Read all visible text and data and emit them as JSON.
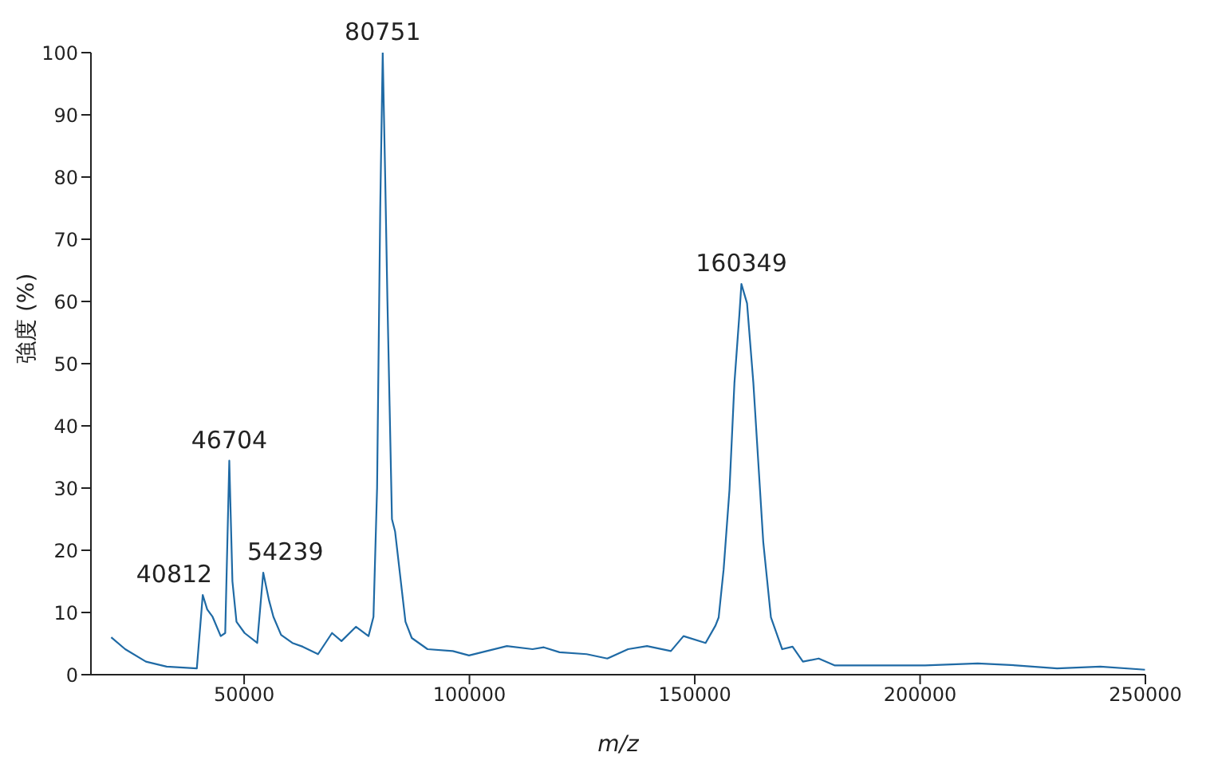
{
  "chart_data": {
    "type": "line",
    "xlabel": "m/z",
    "ylabel": "強度 (%)",
    "x": [
      20500,
      23600,
      28200,
      32800,
      39500,
      40812,
      41800,
      43000,
      44800,
      45800,
      46704,
      47400,
      48300,
      50100,
      52900,
      54239,
      55500,
      56500,
      58200,
      60700,
      63000,
      66400,
      69500,
      71600,
      74800,
      77600,
      78700,
      79500,
      80200,
      80751,
      81300,
      81800,
      82800,
      83500,
      85800,
      87200,
      90700,
      96300,
      99900,
      108300,
      114000,
      116500,
      120000,
      126000,
      130600,
      135200,
      139400,
      144700,
      147500,
      152400,
      154600,
      155300,
      156400,
      157700,
      158800,
      159900,
      160349,
      161600,
      163000,
      164100,
      165200,
      166900,
      169400,
      171700,
      174000,
      177500,
      181000,
      201100,
      212800,
      221300,
      230400,
      240000,
      249900
    ],
    "series": [
      {
        "color": "#1f6aa5",
        "values": [
          6.0,
          4.1,
          2.1,
          1.3,
          1.0,
          12.8,
          10.5,
          9.3,
          6.2,
          6.7,
          34.4,
          15,
          8.5,
          6.7,
          5.1,
          16.4,
          12,
          9.3,
          6.4,
          5.1,
          4.5,
          3.3,
          6.7,
          5.4,
          7.7,
          6.2,
          9.3,
          30,
          75,
          100,
          80,
          60,
          25,
          23,
          8.5,
          5.9,
          4.1,
          3.8,
          3.1,
          4.6,
          4.1,
          4.4,
          3.6,
          3.3,
          2.6,
          4.1,
          4.6,
          3.8,
          6.2,
          5.1,
          7.9,
          9.2,
          16.9,
          29.7,
          46.9,
          57.9,
          62.8,
          59.7,
          46.9,
          34.1,
          21.3,
          9.2,
          4.1,
          4.5,
          2.1,
          2.6,
          1.5,
          1.5,
          1.8,
          1.5,
          1.0,
          1.3,
          0.8
        ]
      }
    ],
    "xlim": [
      16000,
      250000
    ],
    "xticks": [
      50000,
      100000,
      150000,
      200000,
      250000
    ],
    "ylim": [
      0,
      100
    ],
    "yticks": [
      0,
      10,
      20,
      30,
      40,
      50,
      60,
      70,
      80,
      90,
      100
    ],
    "grid": false,
    "marker": "none",
    "annotations": [
      {
        "text": "40812",
        "x": 40812,
        "y": 12.8
      },
      {
        "text": "46704",
        "x": 46704,
        "y": 34.4
      },
      {
        "text": "54239",
        "x": 54239,
        "y": 16.4
      },
      {
        "text": "80751",
        "x": 80751,
        "y": 100
      },
      {
        "text": "160349",
        "x": 160349,
        "y": 62.8
      }
    ]
  }
}
